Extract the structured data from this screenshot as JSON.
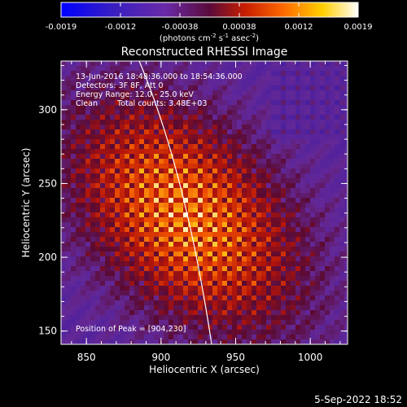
{
  "chart_data": {
    "type": "heatmap",
    "title": "Reconstructed RHESSI Image",
    "xlabel": "Heliocentric X (arcsec)",
    "ylabel": "Heliocentric Y (arcsec)",
    "xlim": [
      833,
      1025
    ],
    "ylim": [
      141,
      333
    ],
    "x_ticks": [
      850,
      900,
      950,
      1000
    ],
    "y_ticks": [
      150,
      200,
      250,
      300
    ],
    "peak": [
      904,
      230
    ],
    "colorbar": {
      "ticks": [
        "-0.0019",
        "-0.0012",
        "-0.00038",
        "0.00038",
        "0.0012",
        "0.0019"
      ],
      "min": -0.0019,
      "max": 0.0019,
      "unit_label": "(photons cm",
      "unit_sup1": "-2",
      "unit_mid": " s",
      "unit_sup2": "-1",
      "unit_tail": " asec",
      "unit_sup3": "-2",
      "unit_close": ")"
    },
    "annotations": {
      "time": "13-Jun-2016 18:48:36.000 to 18:54:36.000",
      "detectors": "Detectors: 3F 8F, Att 0",
      "energy": "Energy Range: 12.0 - 25.0 keV",
      "clean": "Clean",
      "counts": "Total counts: 3.48E+03",
      "peak_text": "Position of Peak = [904,230]"
    },
    "limb": "white solar limb arc",
    "colormap": "blue-purple-red-yellow-white"
  },
  "footer": {
    "date": "5-Sep-2022 18:52"
  }
}
